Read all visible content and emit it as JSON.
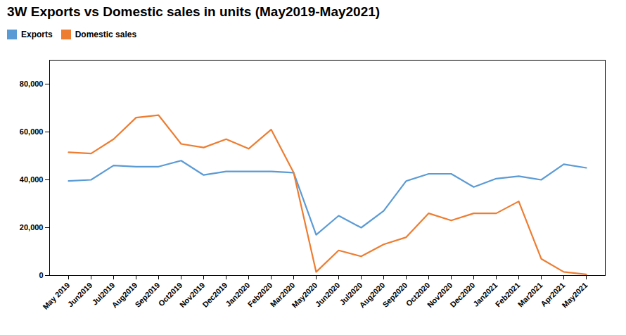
{
  "chart_data": {
    "type": "line",
    "title": "3W Exports vs Domestic sales in units (May2019-May2021)",
    "categories": [
      "May 2019",
      "Jun2019",
      "Jul2019",
      "Aug2019",
      "Sep2019",
      "Oct2019",
      "Nov2019",
      "Dec2019",
      "Jan2020",
      "Feb2020",
      "Mar2020",
      "May2020",
      "Jun2020",
      "Jul2020",
      "Aug2020",
      "Sep2020",
      "Oct2020",
      "Nov2020",
      "Dec2020",
      "Jan2021",
      "Feb2021",
      "Mar2021",
      "Apr2021",
      "May2021"
    ],
    "series": [
      {
        "name": "Exports",
        "color": "#5b9bd5",
        "values": [
          39500,
          40000,
          46000,
          45500,
          45500,
          48000,
          42000,
          43500,
          43500,
          43500,
          43000,
          17000,
          25000,
          20000,
          27000,
          39500,
          42500,
          42500,
          37000,
          40500,
          41500,
          40000,
          46500,
          45000
        ]
      },
      {
        "name": "Domestic sales",
        "color": "#ed7d31",
        "values": [
          51500,
          51000,
          57000,
          66000,
          67000,
          55000,
          53500,
          57000,
          53000,
          61000,
          43000,
          1500,
          10500,
          8000,
          13000,
          16000,
          26000,
          23000,
          26000,
          26000,
          31000,
          7000,
          1500,
          500
        ]
      }
    ],
    "ylim": [
      0,
      90000
    ],
    "yticks": [
      0,
      {
        "value": 20000,
        "label": "20,000"
      },
      {
        "value": 40000,
        "label": "40,000"
      },
      {
        "value": 60000,
        "label": "60,000"
      },
      {
        "value": 80000,
        "label": "80,000"
      }
    ],
    "grid": false,
    "legend": "top"
  }
}
